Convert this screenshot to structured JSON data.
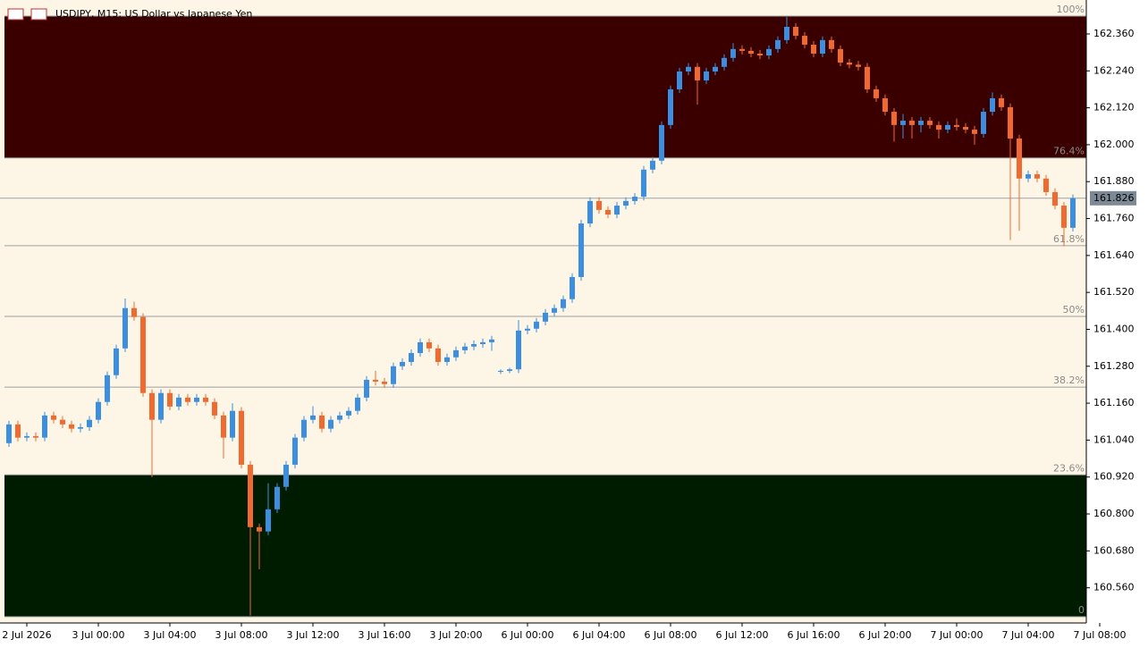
{
  "chart_data": {
    "type": "candlestick",
    "title": "USDJPY, M15:  US Dollar vs Japanese Yen",
    "up_color": "#3c8fe0",
    "down_color": "#f06a30",
    "background": "#fdf5e6",
    "ylim": [
      160.466,
      162.418
    ],
    "yticks": [
      {
        "value": 162.36,
        "label": "162.360"
      },
      {
        "value": 162.24,
        "label": "162.240"
      },
      {
        "value": 162.12,
        "label": "162.120"
      },
      {
        "value": 162.0,
        "label": "162.000"
      },
      {
        "value": 161.88,
        "label": "161.880"
      },
      {
        "value": 161.76,
        "label": "161.760"
      },
      {
        "value": 161.64,
        "label": "161.640"
      },
      {
        "value": 161.52,
        "label": "161.520"
      },
      {
        "value": 161.4,
        "label": "161.400"
      },
      {
        "value": 161.28,
        "label": "161.280"
      },
      {
        "value": 161.16,
        "label": "161.160"
      },
      {
        "value": 161.04,
        "label": "161.040"
      },
      {
        "value": 160.92,
        "label": "160.920"
      },
      {
        "value": 160.8,
        "label": "160.800"
      },
      {
        "value": 160.68,
        "label": "160.680"
      },
      {
        "value": 160.56,
        "label": "160.560"
      }
    ],
    "xticks": [
      {
        "value": 2,
        "label": "2 Jul 2026"
      },
      {
        "value": 10,
        "label": "3 Jul 00:00"
      },
      {
        "value": 18,
        "label": "3 Jul 04:00"
      },
      {
        "value": 26,
        "label": "3 Jul 08:00"
      },
      {
        "value": 34,
        "label": "3 Jul 12:00"
      },
      {
        "value": 42,
        "label": "3 Jul 16:00"
      },
      {
        "value": 50,
        "label": "3 Jul 20:00"
      },
      {
        "value": 58,
        "label": "6 Jul 00:00"
      },
      {
        "value": 66,
        "label": "6 Jul 04:00"
      },
      {
        "value": 74,
        "label": "6 Jul 08:00"
      },
      {
        "value": 82,
        "label": "6 Jul 12:00"
      },
      {
        "value": 90,
        "label": "6 Jul 16:00"
      },
      {
        "value": 98,
        "label": "6 Jul 20:00"
      },
      {
        "value": 106,
        "label": "7 Jul 00:00"
      },
      {
        "value": 114,
        "label": "7 Jul 04:00"
      },
      {
        "value": 122,
        "label": "7 Jul 08:00"
      }
    ],
    "current_price": {
      "value": 161.826,
      "label": "161.826"
    },
    "fib_levels": [
      {
        "label": "100%",
        "price": 162.418
      },
      {
        "label": "76.4%",
        "price": 161.957
      },
      {
        "label": "61.8%",
        "price": 161.672
      },
      {
        "label": "50%",
        "price": 161.442
      },
      {
        "label": "38.2%",
        "price": 161.212
      },
      {
        "label": "23.6%",
        "price": 160.927
      },
      {
        "label": "0",
        "price": 160.466
      }
    ],
    "zones": [
      {
        "from": 161.957,
        "to": 162.418,
        "color": "#3a0000"
      },
      {
        "from": 160.466,
        "to": 160.927,
        "color": "#001c00"
      }
    ],
    "open": [
      161.03,
      161.091,
      161.048,
      161.053,
      161.048,
      161.12,
      161.106,
      161.091,
      161.077,
      161.082,
      161.106,
      161.164,
      161.251,
      161.338,
      161.469,
      161.44,
      161.193,
      161.106,
      161.193,
      161.149,
      161.178,
      161.164,
      161.178,
      161.164,
      161.12,
      161.048,
      161.135,
      160.96,
      160.757,
      160.743,
      160.815,
      160.888,
      160.96,
      161.048,
      161.106,
      161.12,
      161.077,
      161.106,
      161.12,
      161.135,
      161.178,
      161.236,
      161.23,
      161.222,
      161.28,
      161.294,
      161.323,
      161.358,
      161.338,
      161.294,
      161.309,
      161.332,
      161.344,
      161.352,
      161.358,
      161.262,
      161.265,
      161.27,
      161.396,
      161.402,
      161.425,
      161.454,
      161.469,
      161.498,
      161.57,
      161.744,
      161.817,
      161.788,
      161.773,
      161.802,
      161.817,
      161.831,
      161.919,
      161.948,
      162.064,
      162.18,
      162.238,
      162.253,
      162.209,
      162.238,
      162.253,
      162.282,
      162.311,
      162.305,
      162.296,
      162.29,
      162.311,
      162.34,
      162.383,
      162.354,
      162.325,
      162.296,
      162.34,
      162.311,
      162.267,
      162.26,
      162.253,
      162.18,
      162.151,
      162.107,
      162.064,
      162.078,
      162.064,
      162.078,
      162.064,
      162.049,
      162.064,
      162.058,
      162.049,
      162.035,
      162.107,
      162.151,
      162.122,
      162.02,
      161.89,
      161.904,
      161.89,
      161.846,
      161.802,
      161.73
    ],
    "high": [
      161.103,
      161.103,
      161.065,
      161.065,
      161.132,
      161.132,
      161.118,
      161.103,
      161.094,
      161.118,
      161.176,
      161.263,
      161.35,
      161.5,
      161.49,
      161.452,
      161.205,
      161.205,
      161.205,
      161.19,
      161.19,
      161.19,
      161.19,
      161.176,
      161.132,
      161.16,
      161.147,
      160.972,
      160.769,
      160.9,
      160.9,
      160.972,
      161.06,
      161.118,
      161.15,
      161.132,
      161.118,
      161.132,
      161.147,
      161.19,
      161.248,
      161.265,
      161.242,
      161.292,
      161.306,
      161.335,
      161.37,
      161.37,
      161.35,
      161.321,
      161.344,
      161.356,
      161.364,
      161.37,
      161.379,
      161.27,
      161.275,
      161.43,
      161.414,
      161.437,
      161.466,
      161.481,
      161.51,
      161.582,
      161.756,
      161.829,
      161.829,
      161.8,
      161.814,
      161.829,
      161.843,
      161.931,
      161.96,
      162.076,
      162.192,
      162.25,
      162.265,
      162.265,
      162.25,
      162.265,
      162.294,
      162.33,
      162.323,
      162.317,
      162.308,
      162.323,
      162.352,
      162.415,
      162.395,
      162.366,
      162.337,
      162.352,
      162.352,
      162.323,
      162.279,
      162.272,
      162.265,
      162.192,
      162.163,
      162.119,
      162.1,
      162.09,
      162.09,
      162.09,
      162.076,
      162.076,
      162.085,
      162.07,
      162.061,
      162.119,
      162.17,
      162.163,
      162.134,
      162.032,
      161.916,
      161.916,
      161.902,
      161.858,
      161.814,
      161.838
    ],
    "low": [
      161.018,
      161.036,
      161.036,
      161.036,
      161.036,
      161.094,
      161.079,
      161.065,
      161.065,
      161.07,
      161.094,
      161.152,
      161.239,
      161.326,
      161.428,
      161.181,
      160.92,
      161.094,
      161.137,
      161.137,
      161.152,
      161.152,
      161.152,
      161.108,
      160.98,
      161.036,
      160.948,
      160.47,
      160.62,
      160.731,
      160.803,
      160.876,
      160.948,
      161.036,
      161.094,
      161.065,
      161.065,
      161.094,
      161.108,
      161.123,
      161.166,
      161.218,
      161.21,
      161.21,
      161.268,
      161.282,
      161.311,
      161.326,
      161.282,
      161.282,
      161.297,
      161.32,
      161.332,
      161.34,
      161.33,
      161.255,
      161.258,
      161.258,
      161.384,
      161.39,
      161.413,
      161.442,
      161.457,
      161.486,
      161.558,
      161.732,
      161.776,
      161.761,
      161.761,
      161.79,
      161.805,
      161.819,
      161.907,
      161.936,
      162.052,
      162.168,
      162.226,
      162.13,
      162.197,
      162.226,
      162.241,
      162.27,
      162.293,
      162.284,
      162.278,
      162.278,
      162.299,
      162.328,
      162.342,
      162.313,
      162.284,
      162.284,
      162.299,
      162.255,
      162.248,
      162.241,
      162.168,
      162.139,
      162.095,
      162.01,
      162.02,
      162.02,
      162.04,
      162.052,
      162.02,
      162.037,
      162.046,
      162.037,
      162.0,
      162.023,
      162.095,
      162.11,
      161.69,
      161.72,
      161.878,
      161.878,
      161.834,
      161.79,
      161.67,
      161.718
    ],
    "close": [
      161.091,
      161.048,
      161.053,
      161.048,
      161.12,
      161.106,
      161.091,
      161.077,
      161.082,
      161.106,
      161.164,
      161.251,
      161.338,
      161.469,
      161.44,
      161.193,
      161.106,
      161.193,
      161.149,
      161.178,
      161.164,
      161.178,
      161.164,
      161.12,
      161.048,
      161.135,
      160.96,
      160.757,
      160.743,
      160.815,
      160.888,
      160.96,
      161.048,
      161.106,
      161.12,
      161.077,
      161.106,
      161.12,
      161.135,
      161.178,
      161.236,
      161.23,
      161.222,
      161.28,
      161.294,
      161.323,
      161.358,
      161.338,
      161.294,
      161.309,
      161.332,
      161.344,
      161.352,
      161.358,
      161.367,
      161.265,
      161.27,
      161.396,
      161.402,
      161.425,
      161.454,
      161.469,
      161.498,
      161.57,
      161.744,
      161.817,
      161.788,
      161.773,
      161.802,
      161.817,
      161.831,
      161.919,
      161.948,
      162.064,
      162.18,
      162.238,
      162.253,
      162.209,
      162.238,
      162.253,
      162.282,
      162.311,
      162.305,
      162.296,
      162.29,
      162.311,
      162.34,
      162.383,
      162.354,
      162.325,
      162.296,
      162.34,
      162.311,
      162.267,
      162.26,
      162.253,
      162.18,
      162.151,
      162.107,
      162.064,
      162.078,
      162.064,
      162.078,
      162.064,
      162.049,
      162.064,
      162.058,
      162.049,
      162.035,
      162.107,
      162.151,
      162.122,
      162.02,
      161.89,
      161.904,
      161.89,
      161.846,
      161.802,
      161.73,
      161.826
    ]
  }
}
